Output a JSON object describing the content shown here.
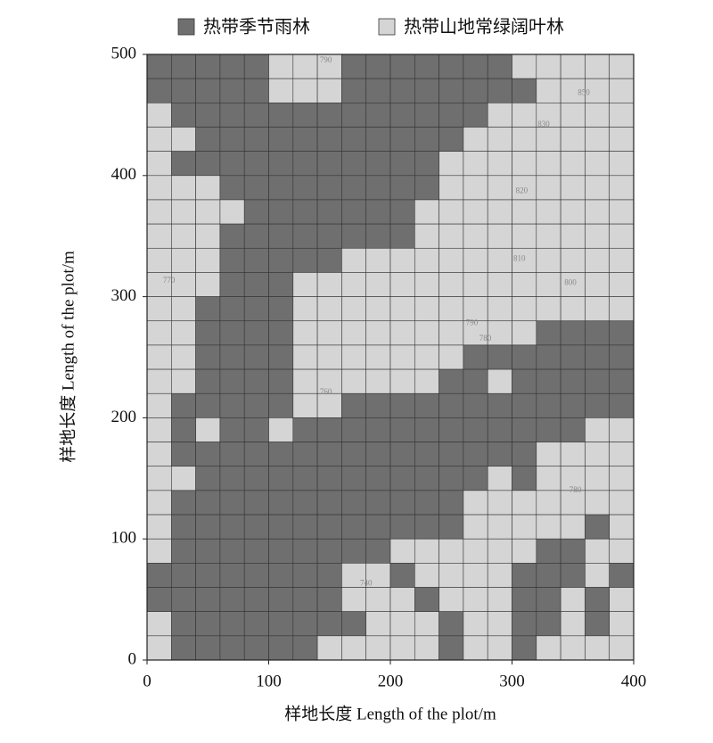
{
  "chart_data": {
    "type": "grid",
    "xlabel": "样地长度  Length of the  plot/m",
    "ylabel": "样地长度  Length of the  plot/m",
    "xlim": [
      0,
      400
    ],
    "ylim": [
      0,
      500
    ],
    "xticks": [
      0,
      100,
      200,
      300,
      400
    ],
    "yticks": [
      0,
      100,
      200,
      300,
      400,
      500
    ],
    "series": [
      {
        "name": "热带季节雨林",
        "color": "#6f6f6f"
      },
      {
        "name": "热带山地常绿阔叶林",
        "color": "#d5d5d5"
      }
    ],
    "grid": [
      [
        0,
        0,
        0,
        0,
        0,
        1,
        1,
        1,
        0,
        0,
        0,
        0,
        0,
        0,
        0,
        1,
        1,
        1,
        1,
        1
      ],
      [
        0,
        0,
        0,
        0,
        0,
        1,
        1,
        1,
        0,
        0,
        0,
        0,
        0,
        0,
        0,
        0,
        1,
        1,
        1,
        1
      ],
      [
        1,
        0,
        0,
        0,
        0,
        0,
        0,
        0,
        0,
        0,
        0,
        0,
        0,
        0,
        1,
        1,
        1,
        1,
        1,
        1
      ],
      [
        1,
        1,
        0,
        0,
        0,
        0,
        0,
        0,
        0,
        0,
        0,
        0,
        0,
        1,
        1,
        1,
        1,
        1,
        1,
        1
      ],
      [
        1,
        0,
        0,
        0,
        0,
        0,
        0,
        0,
        0,
        0,
        0,
        0,
        1,
        1,
        1,
        1,
        1,
        1,
        1,
        1
      ],
      [
        1,
        1,
        1,
        0,
        0,
        0,
        0,
        0,
        0,
        0,
        0,
        0,
        1,
        1,
        1,
        1,
        1,
        1,
        1,
        1
      ],
      [
        1,
        1,
        1,
        1,
        0,
        0,
        0,
        0,
        0,
        0,
        0,
        1,
        1,
        1,
        1,
        1,
        1,
        1,
        1,
        1
      ],
      [
        1,
        1,
        1,
        0,
        0,
        0,
        0,
        0,
        0,
        0,
        0,
        1,
        1,
        1,
        1,
        1,
        1,
        1,
        1,
        1
      ],
      [
        1,
        1,
        1,
        0,
        0,
        0,
        0,
        0,
        1,
        1,
        1,
        1,
        1,
        1,
        1,
        1,
        1,
        1,
        1,
        1
      ],
      [
        1,
        1,
        1,
        0,
        0,
        0,
        1,
        1,
        1,
        1,
        1,
        1,
        1,
        1,
        1,
        1,
        1,
        1,
        1,
        1
      ],
      [
        1,
        1,
        0,
        0,
        0,
        0,
        1,
        1,
        1,
        1,
        1,
        1,
        1,
        1,
        1,
        1,
        1,
        1,
        1,
        1
      ],
      [
        1,
        1,
        0,
        0,
        0,
        0,
        1,
        1,
        1,
        1,
        1,
        1,
        1,
        1,
        1,
        1,
        0,
        0,
        0,
        0
      ],
      [
        1,
        1,
        0,
        0,
        0,
        0,
        1,
        1,
        1,
        1,
        1,
        1,
        1,
        0,
        0,
        0,
        0,
        0,
        0,
        0
      ],
      [
        1,
        1,
        0,
        0,
        0,
        0,
        1,
        1,
        1,
        1,
        1,
        1,
        0,
        0,
        1,
        0,
        0,
        0,
        0,
        0
      ],
      [
        1,
        0,
        0,
        0,
        0,
        0,
        1,
        1,
        0,
        0,
        0,
        0,
        0,
        0,
        0,
        0,
        0,
        0,
        0,
        0
      ],
      [
        1,
        0,
        1,
        0,
        0,
        1,
        0,
        0,
        0,
        0,
        0,
        0,
        0,
        0,
        0,
        0,
        0,
        0,
        1,
        1
      ],
      [
        1,
        0,
        0,
        0,
        0,
        0,
        0,
        0,
        0,
        0,
        0,
        0,
        0,
        0,
        0,
        0,
        1,
        1,
        1,
        1
      ],
      [
        1,
        1,
        0,
        0,
        0,
        0,
        0,
        0,
        0,
        0,
        0,
        0,
        0,
        0,
        1,
        0,
        1,
        1,
        1,
        1
      ],
      [
        1,
        0,
        0,
        0,
        0,
        0,
        0,
        0,
        0,
        0,
        0,
        0,
        0,
        1,
        1,
        1,
        1,
        1,
        1,
        1
      ],
      [
        1,
        0,
        0,
        0,
        0,
        0,
        0,
        0,
        0,
        0,
        0,
        0,
        0,
        1,
        1,
        1,
        1,
        1,
        0,
        1
      ],
      [
        1,
        0,
        0,
        0,
        0,
        0,
        0,
        0,
        0,
        0,
        1,
        1,
        1,
        1,
        1,
        1,
        0,
        0,
        1,
        1
      ],
      [
        0,
        0,
        0,
        0,
        0,
        0,
        0,
        0,
        1,
        1,
        0,
        1,
        1,
        1,
        1,
        0,
        0,
        0,
        1,
        0
      ],
      [
        0,
        0,
        0,
        0,
        0,
        0,
        0,
        0,
        1,
        1,
        1,
        0,
        1,
        1,
        1,
        0,
        0,
        1,
        0,
        1
      ],
      [
        1,
        0,
        0,
        0,
        0,
        0,
        0,
        0,
        0,
        1,
        1,
        1,
        0,
        1,
        1,
        0,
        0,
        1,
        0,
        1
      ],
      [
        1,
        0,
        0,
        0,
        0,
        0,
        0,
        1,
        1,
        1,
        1,
        1,
        0,
        1,
        1,
        0,
        1,
        1,
        1,
        1
      ]
    ],
    "contour_labels": [
      {
        "label": "810",
        "x": 306,
        "y": 331
      },
      {
        "label": "800",
        "x": 348,
        "y": 311
      },
      {
        "label": "790",
        "x": 267,
        "y": 278
      },
      {
        "label": "780",
        "x": 278,
        "y": 265
      },
      {
        "label": "830",
        "x": 326,
        "y": 442
      },
      {
        "label": "820",
        "x": 308,
        "y": 387
      },
      {
        "label": "850",
        "x": 359,
        "y": 468
      },
      {
        "label": "770",
        "x": 18,
        "y": 313
      },
      {
        "label": "740",
        "x": 180,
        "y": 63
      },
      {
        "label": "780",
        "x": 352,
        "y": 140
      },
      {
        "label": "760",
        "x": 147,
        "y": 221
      },
      {
        "label": "790",
        "x": 147,
        "y": 495
      }
    ]
  }
}
